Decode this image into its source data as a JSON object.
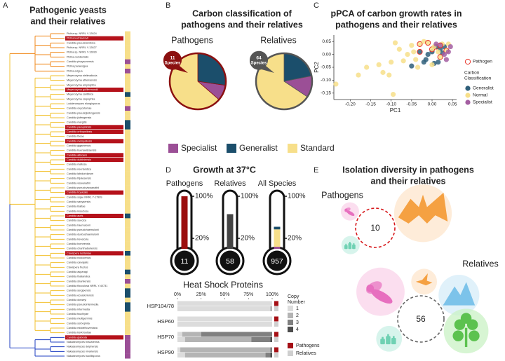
{
  "panel_labels": [
    "A",
    "B",
    "C",
    "D",
    "E"
  ],
  "tree": {
    "title": [
      "Pathogenic yeasts",
      "and their relatives"
    ],
    "highlight_color": "#b5121b",
    "clades": [
      {
        "color": "#f08a1c",
        "tips": [
          {
            "name": "Pichia sp. NRRL Y-12824",
            "class": "Standard"
          },
          {
            "name": "Pichia kudriavzevii",
            "class": "Standard",
            "pathogen": true
          },
          {
            "name": "Candida pseudolambica",
            "class": "Standard"
          },
          {
            "name": "Pichia sp. NRRL Y-12827",
            "class": "Standard"
          },
          {
            "name": "Pichia sp. NRRL Y-12830",
            "class": "Standard"
          },
          {
            "name": "Pichia occidentalis",
            "class": "Standard"
          },
          {
            "name": "Candida phayaonensis",
            "class": "Specialist"
          },
          {
            "name": "Pichia paraexigua",
            "class": "Standard"
          },
          {
            "name": "Pichia exigua",
            "class": "Specialist"
          }
        ]
      },
      {
        "color": "#f2c12e",
        "tips": [
          {
            "name": "Meyerozyma stelimalicola",
            "class": "Standard"
          },
          {
            "name": "Meyerozyma athensensis",
            "class": "Standard"
          },
          {
            "name": "Meyerozyma amylolytica",
            "class": "Standard"
          },
          {
            "name": "Meyerozyma guilliermondii",
            "class": "Standard",
            "pathogen": true
          },
          {
            "name": "Meyerozyma caribbica",
            "class": "Generalist"
          },
          {
            "name": "Meyerozyma carpophila",
            "class": "Standard"
          },
          {
            "name": "Lodderomyces elongisporus",
            "class": "Standard"
          },
          {
            "name": "Candida oxycetoniae",
            "class": "Specialist"
          },
          {
            "name": "Candida pseudojiufengensis",
            "class": "Standard"
          },
          {
            "name": "Candida jiufengensis",
            "class": "Standard"
          },
          {
            "name": "Candida margitis",
            "class": "Generalist"
          },
          {
            "name": "Candida parapsilosis",
            "class": "Generalist",
            "pathogen": true
          },
          {
            "name": "Candida orthopsilosis",
            "class": "Standard",
            "pathogen": true
          },
          {
            "name": "Candida theae",
            "class": "Standard"
          },
          {
            "name": "Candida metapsilosis",
            "class": "Standard",
            "pathogen": true
          },
          {
            "name": "Candida gigantensis",
            "class": "Standard"
          },
          {
            "name": "Candida buenavistaensis",
            "class": "Standard"
          },
          {
            "name": "Candida albicans",
            "class": "Standard",
            "pathogen": true
          },
          {
            "name": "Candida dubliniensis",
            "class": "Standard",
            "pathogen": true
          },
          {
            "name": "Candida maltosa",
            "class": "Standard"
          },
          {
            "name": "Candida neerlandica",
            "class": "Standard"
          },
          {
            "name": "Candida labiduridarum",
            "class": "Standard"
          },
          {
            "name": "Candida frijolesensis",
            "class": "Standard"
          },
          {
            "name": "Candida viswanathii",
            "class": "Standard"
          },
          {
            "name": "Candida pseudoviswanathii",
            "class": "Standard"
          },
          {
            "name": "Candida tropicalis",
            "class": "Standard",
            "pathogen": true
          },
          {
            "name": "Candida sojae NRRL Y-17909",
            "class": "Standard"
          },
          {
            "name": "Candida sanyaensis",
            "class": "Standard"
          },
          {
            "name": "Candida blattae",
            "class": "Standard"
          },
          {
            "name": "Candida insectosa",
            "class": "Standard"
          },
          {
            "name": "Candida auris",
            "class": "Generalist",
            "pathogen": true
          },
          {
            "name": "Candida suecica",
            "class": "Standard"
          },
          {
            "name": "Candida haemulonii",
            "class": "Standard"
          },
          {
            "name": "Candida pseudohaemulonii",
            "class": "Standard"
          },
          {
            "name": "Candida duobushaemulonii",
            "class": "Standard"
          },
          {
            "name": "Candida heveicola",
            "class": "Standard"
          },
          {
            "name": "Candida bomeensis",
            "class": "Standard"
          },
          {
            "name": "Candida chanthaburiensis",
            "class": "Standard"
          },
          {
            "name": "Clavispora lusitaniae",
            "class": "Generalist",
            "pathogen": true
          },
          {
            "name": "Candida riodocensis",
            "class": "Standard"
          },
          {
            "name": "Candida carvajalis",
            "class": "Standard"
          },
          {
            "name": "Clavispora fructus",
            "class": "Standard"
          },
          {
            "name": "Candida asparagi",
            "class": "Generalist"
          },
          {
            "name": "Candida thailandica",
            "class": "Standard"
          },
          {
            "name": "Candida sharkiensis",
            "class": "Specialist"
          },
          {
            "name": "Candida flocculosa NRRL Y-40731",
            "class": "Standard"
          },
          {
            "name": "Candida sergipensis",
            "class": "Generalist"
          },
          {
            "name": "Candida ecuadoriensis",
            "class": "Generalist"
          },
          {
            "name": "Candida dosseyi",
            "class": "Standard"
          },
          {
            "name": "Candida pseudointermedia",
            "class": "Generalist"
          },
          {
            "name": "Candida intermedia",
            "class": "Generalist"
          },
          {
            "name": "Candida tsuchiyae",
            "class": "Standard"
          },
          {
            "name": "Candida multigemmis",
            "class": "Standard"
          },
          {
            "name": "Candida sorbophila",
            "class": "Standard"
          },
          {
            "name": "Candida middelhoveniana",
            "class": "Standard"
          },
          {
            "name": "Candida berkhoutiae",
            "class": "Standard"
          }
        ]
      },
      {
        "color": "#1f3fc2",
        "tips": [
          {
            "name": "Candida glabrata",
            "class": "Specialist",
            "pathogen": true
          },
          {
            "name": "Nakaseomyces bracarensis",
            "class": "Specialist"
          },
          {
            "name": "Nakaseomyces delphensis",
            "class": "Specialist"
          },
          {
            "name": "Nakaseomyces nivariensis",
            "class": "Specialist"
          },
          {
            "name": "Nakaseomyces bacillisporus",
            "class": "Specialist"
          }
        ]
      }
    ]
  },
  "chart_data": [
    {
      "type": "pie",
      "title": [
        "Carbon classification of",
        "pathogens and their relatives"
      ],
      "categories": [
        "Specialist",
        "Generalist",
        "Standard"
      ],
      "colors": [
        "#9b4f96",
        "#1b4e6b",
        "#f7df8a"
      ],
      "pies": [
        {
          "name": "Pathogens",
          "values": [
            1,
            3,
            7
          ],
          "outline": "#8b1010",
          "badge": {
            "count": 11,
            "label": "Species"
          }
        },
        {
          "name": "Relatives",
          "values": [
            8,
            14,
            42
          ],
          "outline": "#555555",
          "badge": {
            "count": 64,
            "label": "Species"
          }
        }
      ]
    },
    {
      "type": "scatter",
      "title": [
        "pPCA of carbon growth rates in",
        "pathogens and their relatives"
      ],
      "xlabel": "PC1",
      "ylabel": "PC2",
      "xlim": [
        -0.24,
        0.06
      ],
      "ylim": [
        -0.175,
        0.075
      ],
      "xticks": [
        {
          "value": -0.2,
          "label": "-0.20"
        },
        -0.15,
        {
          "value": -0.1,
          "label": "-0.10"
        },
        -0.05,
        {
          "value": 0,
          "label": "0.00"
        },
        0.05
      ],
      "yticks": [
        0.05,
        {
          "value": 0,
          "label": "0.00"
        },
        -0.05,
        {
          "value": -0.1,
          "label": "-0.10"
        },
        -0.15
      ],
      "pathogen_label": "Pathogen",
      "pathogen_color": "#e8372c",
      "legend_title": [
        "Carbon",
        "Classification"
      ],
      "series": [
        {
          "name": "Generalist",
          "color": "#2f5f7a",
          "x": [
            -0.03,
            -0.02,
            -0.015,
            0.0,
            0.01,
            0.005,
            -0.05,
            0.02,
            0.03,
            -0.01,
            0.015,
            0.025
          ],
          "y": [
            0.01,
            -0.03,
            -0.02,
            0.01,
            0.03,
            -0.035,
            -0.045,
            0.02,
            0.03,
            0.0,
            -0.03,
            0.005
          ],
          "pathogen": [
            true,
            false,
            false,
            false,
            true,
            false,
            false,
            false,
            false,
            false,
            false,
            false
          ]
        },
        {
          "name": "Normal",
          "color": "#f7df8a",
          "x": [
            -0.235,
            -0.18,
            -0.16,
            -0.13,
            -0.12,
            -0.1,
            -0.09,
            -0.08,
            -0.06,
            -0.07,
            -0.05,
            -0.04,
            -0.03,
            -0.02,
            -0.01,
            0.0,
            0.005,
            0.015,
            0.02,
            0.0,
            -0.095,
            -0.105,
            -0.045,
            0.025,
            0.035,
            0.04,
            -0.035
          ],
          "y": [
            -0.115,
            -0.08,
            -0.05,
            -0.04,
            -0.07,
            -0.03,
            0.045,
            0.02,
            0.0,
            -0.025,
            0.035,
            -0.02,
            0.04,
            0.05,
            0.045,
            0.02,
            0.03,
            0.01,
            -0.01,
            -0.04,
            -0.155,
            -0.08,
            0.01,
            0.04,
            0.015,
            0.04,
            -0.05
          ],
          "pathogen": [
            false,
            false,
            false,
            false,
            false,
            false,
            false,
            false,
            false,
            false,
            false,
            false,
            true,
            false,
            true,
            true,
            false,
            false,
            true,
            false,
            false,
            false,
            false,
            false,
            true,
            false,
            false
          ]
        },
        {
          "name": "Specialist",
          "color": "#a35ea1",
          "x": [
            0.02,
            0.03,
            0.04,
            0.035,
            0.01,
            0.045
          ],
          "y": [
            0.035,
            0.0,
            0.01,
            -0.02,
            0.04,
            0.03
          ],
          "pathogen": [
            true,
            false,
            false,
            false,
            false,
            false
          ]
        }
      ]
    },
    {
      "type": "thermometer",
      "title": "Growth at 37°C",
      "ylim": [
        0,
        100
      ],
      "yticks": [
        {
          "value": 20,
          "label": "20%"
        },
        {
          "value": 100,
          "label": "100%"
        }
      ],
      "items": [
        {
          "name": "Pathogens",
          "count": 11,
          "segments": [
            {
              "value": 100,
              "color": "#9b0d0d"
            }
          ]
        },
        {
          "name": "Relatives",
          "count": 58,
          "segments": [
            {
              "value": 66,
              "color": "#444444"
            }
          ]
        },
        {
          "name": "All Species",
          "count": 957,
          "segments": [
            {
              "value": 4,
              "color": "#9b4f96"
            },
            {
              "value": 33,
              "color": "#f7df8a"
            },
            {
              "value": 5,
              "color": "#1b4e6b"
            }
          ]
        }
      ]
    },
    {
      "type": "stacked-barh",
      "title": "Heat Shock Proteins",
      "categories": [
        "HSP104/78",
        "HSP60",
        "HSP70",
        "HSP90"
      ],
      "xlim": [
        0,
        100
      ],
      "xticks": [
        {
          "value": 0,
          "label": "0%"
        },
        {
          "value": 25,
          "label": "25%"
        },
        {
          "value": 50,
          "label": "50%"
        },
        {
          "value": 75,
          "label": "75%"
        },
        {
          "value": 100,
          "label": "100%"
        }
      ],
      "legend_title": [
        "Copy",
        "Number"
      ],
      "copy_numbers": [
        {
          "name": "1",
          "color": "#dcdcdc"
        },
        {
          "name": "2",
          "color": "#b4b4b4"
        },
        {
          "name": "3",
          "color": "#808080"
        },
        {
          "name": "4",
          "color": "#4d4d4d"
        }
      ],
      "groups": [
        {
          "name": "Pathogens",
          "color": "#a50f15",
          "series": [
            {
              "values": [
                100,
                100,
                5,
                3
              ]
            },
            {
              "values": [
                0,
                0,
                20,
                95
              ]
            },
            {
              "values": [
                0,
                0,
                75,
                2
              ]
            },
            {
              "values": [
                0,
                0,
                0,
                0
              ]
            }
          ]
        },
        {
          "name": "Relatives",
          "color": "#cfcfcf",
          "series": [
            {
              "values": [
                98,
                100,
                8,
                8
              ]
            },
            {
              "values": [
                2,
                0,
                70,
                85
              ]
            },
            {
              "values": [
                0,
                0,
                20,
                5
              ]
            },
            {
              "values": [
                0,
                0,
                2,
                2
              ]
            }
          ]
        }
      ]
    },
    {
      "type": "bubble",
      "title": [
        "Isolation diversity in pathogens",
        "and their relatives"
      ],
      "groups": [
        {
          "name": "Pathogens",
          "total": 10,
          "outline": "#d7191c",
          "bubbles": [
            {
              "value": 1,
              "icon": "insect",
              "color": "#f9d3ea",
              "icon_color": "#e76fbf"
            },
            {
              "value": 10,
              "icon": "bat",
              "color": "#fde6cc",
              "icon_color": "#f5a142"
            },
            {
              "value": 1,
              "icon": "bottles",
              "color": "#c9f0e6",
              "icon_color": "#6fd1b3"
            }
          ]
        },
        {
          "name": "Relatives",
          "total": 56,
          "outline": "#666666",
          "bubbles": [
            {
              "value": 7,
              "icon": "insect",
              "color": "#f9d3ea",
              "icon_color": "#e76fbf"
            },
            {
              "value": 2,
              "icon": "bird",
              "color": "#fde6cc",
              "icon_color": "#f5a142"
            },
            {
              "value": 5,
              "icon": "mountains",
              "color": "#d6ecf8",
              "icon_color": "#7cc3ea"
            },
            {
              "value": 6,
              "icon": "plant",
              "color": "#c9f2c4",
              "icon_color": "#5cc24f"
            },
            {
              "value": 2,
              "icon": "bottles",
              "color": "#c9f0e6",
              "icon_color": "#6fd1b3"
            }
          ]
        }
      ]
    }
  ]
}
